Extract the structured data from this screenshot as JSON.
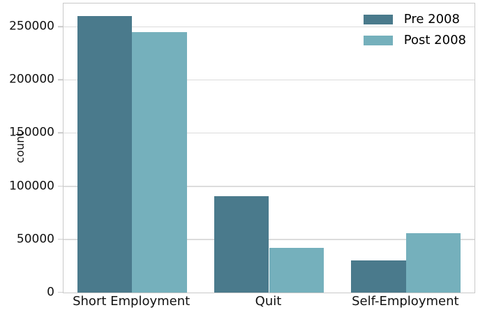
{
  "chart_data": {
    "type": "bar",
    "title": "",
    "xlabel": "",
    "ylabel": "count",
    "categories": [
      "Short Employment",
      "Quit",
      "Self-Employment"
    ],
    "series": [
      {
        "name": "Pre 2008",
        "color": "#4a7a8c",
        "values": [
          260000,
          91000,
          30000
        ]
      },
      {
        "name": "Post 2008",
        "color": "#75b0bc",
        "values": [
          245000,
          42000,
          56000
        ]
      }
    ],
    "ylim": [
      0,
      272000
    ],
    "yticks": [
      0,
      50000,
      100000,
      150000,
      200000,
      250000
    ],
    "ytick_labels": [
      "0",
      "50000",
      "100000",
      "150000",
      "200000",
      "250000"
    ],
    "grid": "horizontal",
    "legend_position": "upper right",
    "legend_frame": false
  },
  "colors": {
    "series_pre_2008": "#4a7a8c",
    "series_post_2008": "#75b0bc",
    "gridline": "#dcdcdc",
    "spine": "#c9c9c9",
    "text": "#111111",
    "background": "#ffffff"
  }
}
